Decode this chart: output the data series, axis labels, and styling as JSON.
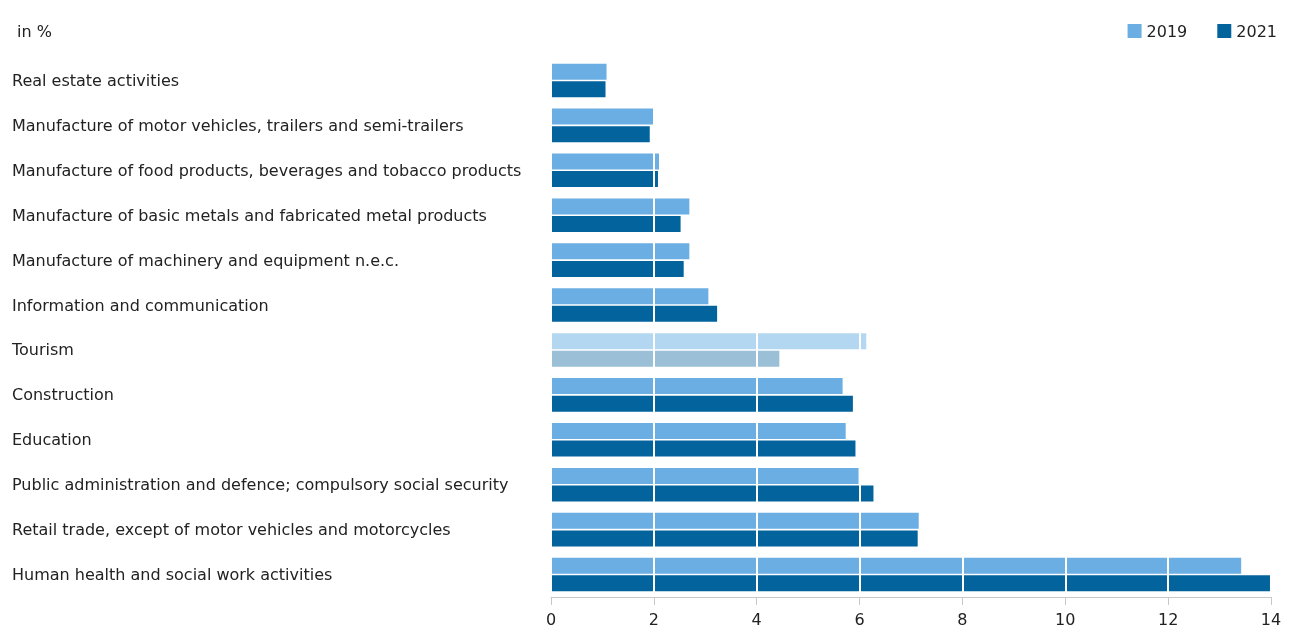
{
  "chart_data": {
    "type": "bar",
    "orientation": "horizontal",
    "xlabel": "in %",
    "categories": [
      "Real estate activities",
      "Manufacture of motor vehicles, trailers and semi-trailers",
      "Manufacture of food products, beverages and tobacco products",
      "Manufacture of basic metals and fabricated metal products",
      "Manufacture of machinery and equipment n.e.c.",
      "Information and communication",
      "Tourism",
      "Construction",
      "Education",
      "Public administration and defence; compulsory social security",
      "Retail trade, except of motor vehicles and motorcycles",
      "Human health and social work activities"
    ],
    "series": [
      {
        "name": "2019",
        "color": "#6aaee3",
        "colors": [
          "#6aaee3",
          "#6aaee3",
          "#6aaee3",
          "#6aaee3",
          "#6aaee3",
          "#6aaee3",
          "#b3d7f1",
          "#6aaee3",
          "#6aaee3",
          "#6aaee3",
          "#6aaee3",
          "#6aaee3"
        ],
        "values": [
          1.08,
          2.02,
          2.1,
          2.69,
          2.69,
          3.06,
          6.13,
          5.67,
          5.73,
          5.98,
          7.15,
          13.42
        ]
      },
      {
        "name": "2021",
        "color": "#03639c",
        "colors": [
          "#03639c",
          "#03639c",
          "#03639c",
          "#03639c",
          "#03639c",
          "#03639c",
          "#9bbfd6",
          "#03639c",
          "#03639c",
          "#03639c",
          "#03639c",
          "#03639c"
        ],
        "values": [
          1.06,
          1.92,
          2.08,
          2.52,
          2.58,
          3.23,
          4.44,
          5.87,
          5.92,
          6.27,
          7.13,
          13.98
        ]
      }
    ],
    "xlim": [
      0,
      14
    ],
    "xticks": [
      0,
      2,
      4,
      6,
      8,
      10,
      12,
      14
    ],
    "grid": "x",
    "legend": "top right"
  }
}
